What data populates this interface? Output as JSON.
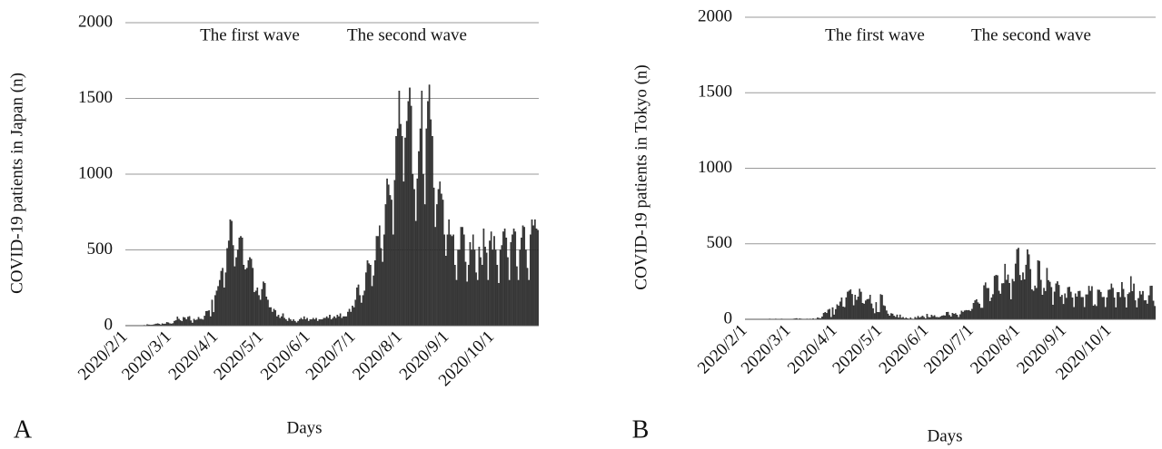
{
  "chart_data": [
    {
      "type": "bar",
      "panel_label": "A",
      "y_label": "COVID-19 patients in Japan (n)",
      "x_label": "Days",
      "annotations": [
        "The first wave",
        "The second wave"
      ],
      "color": "#3a3a3a",
      "grid": true,
      "ylim": [
        0,
        2000
      ],
      "yticks": [
        0,
        500,
        1000,
        1500,
        2000
      ],
      "categories": [
        "2020/2/1",
        null,
        null,
        null,
        null,
        null,
        null,
        null,
        null,
        null,
        null,
        null,
        null,
        null,
        null,
        null,
        null,
        null,
        null,
        null,
        null,
        null,
        null,
        null,
        null,
        null,
        null,
        null,
        null,
        "2020/3/1",
        null,
        null,
        null,
        null,
        null,
        null,
        null,
        null,
        null,
        null,
        null,
        null,
        null,
        null,
        null,
        null,
        null,
        null,
        null,
        null,
        null,
        null,
        null,
        null,
        null,
        null,
        null,
        null,
        null,
        null,
        "2020/4/1",
        null,
        null,
        null,
        null,
        null,
        null,
        null,
        null,
        null,
        null,
        null,
        null,
        null,
        null,
        null,
        null,
        null,
        null,
        null,
        null,
        null,
        null,
        null,
        null,
        null,
        null,
        null,
        null,
        null,
        "2020/5/1",
        null,
        null,
        null,
        null,
        null,
        null,
        null,
        null,
        null,
        null,
        null,
        null,
        null,
        null,
        null,
        null,
        null,
        null,
        null,
        null,
        null,
        null,
        null,
        null,
        null,
        null,
        null,
        null,
        null,
        null,
        "2020/6/1",
        null,
        null,
        null,
        null,
        null,
        null,
        null,
        null,
        null,
        null,
        null,
        null,
        null,
        null,
        null,
        null,
        null,
        null,
        null,
        null,
        null,
        null,
        null,
        null,
        null,
        null,
        null,
        null,
        null,
        "2020/7/1",
        null,
        null,
        null,
        null,
        null,
        null,
        null,
        null,
        null,
        null,
        null,
        null,
        null,
        null,
        null,
        null,
        null,
        null,
        null,
        null,
        null,
        null,
        null,
        null,
        null,
        null,
        null,
        null,
        null,
        null,
        "2020/8/1",
        null,
        null,
        null,
        null,
        null,
        null,
        null,
        null,
        null,
        null,
        null,
        null,
        null,
        null,
        null,
        null,
        null,
        null,
        null,
        null,
        null,
        null,
        null,
        null,
        null,
        null,
        null,
        null,
        null,
        null,
        "2020/9/1",
        null,
        null,
        null,
        null,
        null,
        null,
        null,
        null,
        null,
        null,
        null,
        null,
        null,
        null,
        null,
        null,
        null,
        null,
        null,
        null,
        null,
        null,
        null,
        null,
        null,
        null,
        null,
        null,
        null,
        "2020/10/1",
        null,
        null,
        null,
        null,
        null,
        null,
        null,
        null,
        null,
        null,
        null,
        null,
        null,
        null,
        null,
        null,
        null,
        null,
        null,
        null,
        null,
        null,
        null,
        null,
        null,
        null,
        null,
        null,
        null,
        null
      ],
      "values": [
        0,
        0,
        0,
        1,
        2,
        0,
        1,
        0,
        0,
        0,
        0,
        0,
        3,
        2,
        8,
        6,
        4,
        5,
        6,
        9,
        12,
        14,
        10,
        6,
        14,
        10,
        12,
        22,
        20,
        14,
        12,
        15,
        30,
        34,
        58,
        44,
        34,
        28,
        55,
        52,
        40,
        57,
        62,
        33,
        18,
        44,
        36,
        39,
        56,
        43,
        43,
        39,
        64,
        95,
        96,
        100,
        60,
        170,
        88,
        200,
        230,
        260,
        300,
        360,
        380,
        250,
        350,
        510,
        560,
        700,
        690,
        530,
        390,
        450,
        500,
        580,
        590,
        580,
        400,
        370,
        380,
        430,
        450,
        440,
        380,
        220,
        230,
        250,
        200,
        170,
        240,
        290,
        280,
        190,
        170,
        120,
        120,
        90,
        110,
        100,
        60,
        70,
        50,
        60,
        80,
        50,
        40,
        30,
        50,
        40,
        30,
        40,
        30,
        20,
        30,
        40,
        50,
        40,
        60,
        40,
        50,
        30,
        40,
        40,
        50,
        40,
        50,
        30,
        40,
        40,
        40,
        50,
        50,
        60,
        50,
        70,
        40,
        50,
        60,
        50,
        70,
        60,
        80,
        50,
        60,
        60,
        60,
        90,
        110,
        90,
        130,
        120,
        170,
        250,
        270,
        200,
        150,
        200,
        230,
        350,
        430,
        410,
        400,
        260,
        330,
        430,
        590,
        590,
        660,
        510,
        420,
        600,
        800,
        970,
        930,
        860,
        830,
        600,
        960,
        1250,
        1300,
        1550,
        1330,
        1250,
        950,
        1240,
        1350,
        1480,
        1570,
        1450,
        1000,
        900,
        690,
        970,
        1150,
        1300,
        1550,
        1000,
        800,
        1300,
        1480,
        1590,
        1360,
        1250,
        910,
        650,
        800,
        900,
        950,
        870,
        830,
        600,
        460,
        600,
        700,
        600,
        590,
        600,
        400,
        300,
        500,
        500,
        650,
        650,
        600,
        420,
        290,
        400,
        550,
        500,
        600,
        500,
        350,
        300,
        520,
        450,
        400,
        640,
        520,
        480,
        300,
        560,
        620,
        500,
        590,
        500,
        400,
        280,
        500,
        530,
        620,
        640,
        580,
        450,
        300,
        550,
        600,
        640,
        620,
        390,
        300,
        500,
        580,
        660,
        650,
        500,
        380,
        300,
        600,
        700,
        660,
        700,
        640,
        630
      ]
    },
    {
      "type": "bar",
      "panel_label": "B",
      "y_label": "COVID-19 patients in Tokyo (n)",
      "x_label": "Days",
      "annotations": [
        "The first wave",
        "The second wave"
      ],
      "color": "#3a3a3a",
      "grid": true,
      "ylim": [
        0,
        2000
      ],
      "yticks": [
        0,
        500,
        1000,
        1500,
        2000
      ],
      "categories": [
        "2020/2/1",
        null,
        null,
        null,
        null,
        null,
        null,
        null,
        null,
        null,
        null,
        null,
        null,
        null,
        null,
        null,
        null,
        null,
        null,
        null,
        null,
        null,
        null,
        null,
        null,
        null,
        null,
        null,
        null,
        "2020/3/1",
        null,
        null,
        null,
        null,
        null,
        null,
        null,
        null,
        null,
        null,
        null,
        null,
        null,
        null,
        null,
        null,
        null,
        null,
        null,
        null,
        null,
        null,
        null,
        null,
        null,
        null,
        null,
        null,
        null,
        null,
        "2020/4/1",
        null,
        null,
        null,
        null,
        null,
        null,
        null,
        null,
        null,
        null,
        null,
        null,
        null,
        null,
        null,
        null,
        null,
        null,
        null,
        null,
        null,
        null,
        null,
        null,
        null,
        null,
        null,
        null,
        null,
        "2020/5/1",
        null,
        null,
        null,
        null,
        null,
        null,
        null,
        null,
        null,
        null,
        null,
        null,
        null,
        null,
        null,
        null,
        null,
        null,
        null,
        null,
        null,
        null,
        null,
        null,
        null,
        null,
        null,
        null,
        null,
        null,
        "2020/6/1",
        null,
        null,
        null,
        null,
        null,
        null,
        null,
        null,
        null,
        null,
        null,
        null,
        null,
        null,
        null,
        null,
        null,
        null,
        null,
        null,
        null,
        null,
        null,
        null,
        null,
        null,
        null,
        null,
        null,
        "2020/7/1",
        null,
        null,
        null,
        null,
        null,
        null,
        null,
        null,
        null,
        null,
        null,
        null,
        null,
        null,
        null,
        null,
        null,
        null,
        null,
        null,
        null,
        null,
        null,
        null,
        null,
        null,
        null,
        null,
        null,
        null,
        "2020/8/1",
        null,
        null,
        null,
        null,
        null,
        null,
        null,
        null,
        null,
        null,
        null,
        null,
        null,
        null,
        null,
        null,
        null,
        null,
        null,
        null,
        null,
        null,
        null,
        null,
        null,
        null,
        null,
        null,
        null,
        null,
        "2020/9/1",
        null,
        null,
        null,
        null,
        null,
        null,
        null,
        null,
        null,
        null,
        null,
        null,
        null,
        null,
        null,
        null,
        null,
        null,
        null,
        null,
        null,
        null,
        null,
        null,
        null,
        null,
        null,
        null,
        null,
        "2020/10/1",
        null,
        null,
        null,
        null,
        null,
        null,
        null,
        null,
        null,
        null,
        null,
        null,
        null,
        null,
        null,
        null,
        null,
        null,
        null,
        null,
        null,
        null,
        null,
        null,
        null,
        null,
        null,
        null,
        null,
        null
      ],
      "values": [
        0,
        0,
        0,
        0,
        0,
        0,
        0,
        0,
        0,
        0,
        0,
        0,
        1,
        0,
        2,
        1,
        3,
        1,
        0,
        2,
        3,
        1,
        2,
        1,
        3,
        2,
        1,
        0,
        2,
        1,
        2,
        1,
        3,
        4,
        6,
        2,
        4,
        3,
        2,
        1,
        2,
        3,
        2,
        3,
        1,
        5,
        2,
        3,
        10,
        7,
        6,
        17,
        41,
        47,
        40,
        63,
        68,
        13,
        78,
        30,
        66,
        97,
        89,
        116,
        143,
        83,
        79,
        144,
        181,
        189,
        197,
        166,
        91,
        161,
        127,
        149,
        201,
        181,
        107,
        102,
        123,
        132,
        134,
        161,
        103,
        72,
        39,
        112,
        47,
        46,
        165,
        160,
        91,
        87,
        57,
        36,
        23,
        39,
        36,
        22,
        15,
        30,
        10,
        30,
        9,
        14,
        5,
        10,
        5,
        3,
        11,
        3,
        2,
        14,
        8,
        21,
        11,
        15,
        22,
        14,
        5,
        34,
        13,
        12,
        28,
        20,
        26,
        14,
        13,
        12,
        18,
        22,
        25,
        24,
        47,
        48,
        27,
        16,
        41,
        35,
        39,
        29,
        14,
        31,
        55,
        48,
        57,
        60,
        58,
        60,
        54,
        67,
        107,
        124,
        131,
        111,
        102,
        75,
        75,
        224,
        243,
        206,
        206,
        119,
        143,
        165,
        286,
        293,
        290,
        188,
        168,
        237,
        238,
        366,
        260,
        295,
        239,
        131,
        266,
        250,
        367,
        463,
        472,
        292,
        258,
        309,
        263,
        360,
        462,
        429,
        331,
        197,
        188,
        222,
        206,
        389,
        385,
        260,
        161,
        207,
        186,
        339,
        258,
        247,
        212,
        95,
        182,
        236,
        250,
        226,
        148,
        160,
        100,
        170,
        141,
        211,
        214,
        181,
        143,
        80,
        170,
        149,
        186,
        187,
        146,
        146,
        80,
        163,
        163,
        220,
        187,
        218,
        89,
        98,
        87,
        195,
        194,
        180,
        146,
        147,
        80,
        144,
        194,
        196,
        235,
        207,
        143,
        78,
        178,
        179,
        146,
        245,
        200,
        146,
        77,
        166,
        177,
        284,
        185,
        235,
        124,
        78,
        139,
        186,
        163,
        186,
        124,
        125,
        102,
        158,
        220,
        221,
        122,
        87
      ]
    }
  ]
}
